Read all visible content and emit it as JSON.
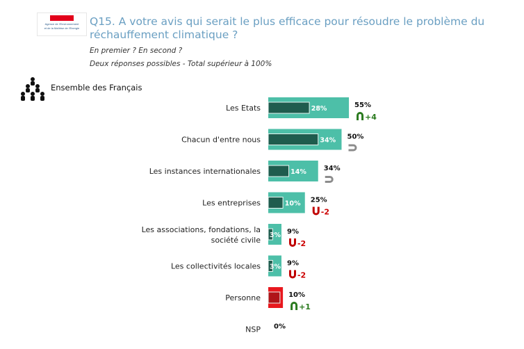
{
  "logo": {
    "line1": "Agence de l'Environnement",
    "line2": "et de la Maîtrise de l'Energie"
  },
  "header": {
    "title": "Q15. A votre avis qui serait le plus efficace pour résoudre le problème du réchauffement climatique ?",
    "subtitle1": "En premier ? En second ?",
    "subtitle2": "Deux réponses possibles - Total supérieur à 100%"
  },
  "group": {
    "label": "Ensemble des Français",
    "icon": "people-group-icon"
  },
  "colors": {
    "total_bar": "#4dbfa8",
    "first_bar": "#1f5c4e",
    "highlight_bar": "#e8181e",
    "highlight_first": "#b01419",
    "up": "#2a7a1e",
    "down": "#c00000",
    "stable": "#8c8c8c",
    "title": "#6a9fc2"
  },
  "chart_data": {
    "type": "bar",
    "orientation": "horizontal",
    "title": "Q15. A votre avis qui serait le plus efficace pour résoudre le problème du réchauffement climatique ?",
    "categories": [
      "Les Etats",
      "Chacun d'entre nous",
      "Les instances internationales",
      "Les entreprises",
      "Les associations, fondations, la société civile",
      "Les collectivités locales",
      "Personne",
      "NSP"
    ],
    "series": [
      {
        "name": "Total (en premier + en second)",
        "values": [
          55,
          50,
          34,
          25,
          9,
          9,
          10,
          0
        ]
      },
      {
        "name": "En premier",
        "values": [
          28,
          34,
          14,
          10,
          3,
          3,
          8,
          null
        ]
      }
    ],
    "first_labels": [
      "28%",
      "34%",
      "14%",
      "10%",
      "3%",
      "3%",
      "8%",
      ""
    ],
    "total_labels": [
      "55%",
      "50%",
      "34%",
      "25%",
      "9%",
      "9%",
      "10%",
      "0%"
    ],
    "evolution": [
      {
        "trend": "up",
        "label": "+4"
      },
      {
        "trend": "stable",
        "label": ""
      },
      {
        "trend": "stable",
        "label": ""
      },
      {
        "trend": "down",
        "label": "-2"
      },
      {
        "trend": "down",
        "label": "-2"
      },
      {
        "trend": "down",
        "label": "-2"
      },
      {
        "trend": "up",
        "label": "+1"
      },
      {
        "trend": "none",
        "label": ""
      }
    ],
    "highlighted": [
      false,
      false,
      false,
      false,
      false,
      false,
      true,
      false
    ],
    "xlim": [
      0,
      100
    ],
    "grid": false,
    "legend": "none"
  }
}
